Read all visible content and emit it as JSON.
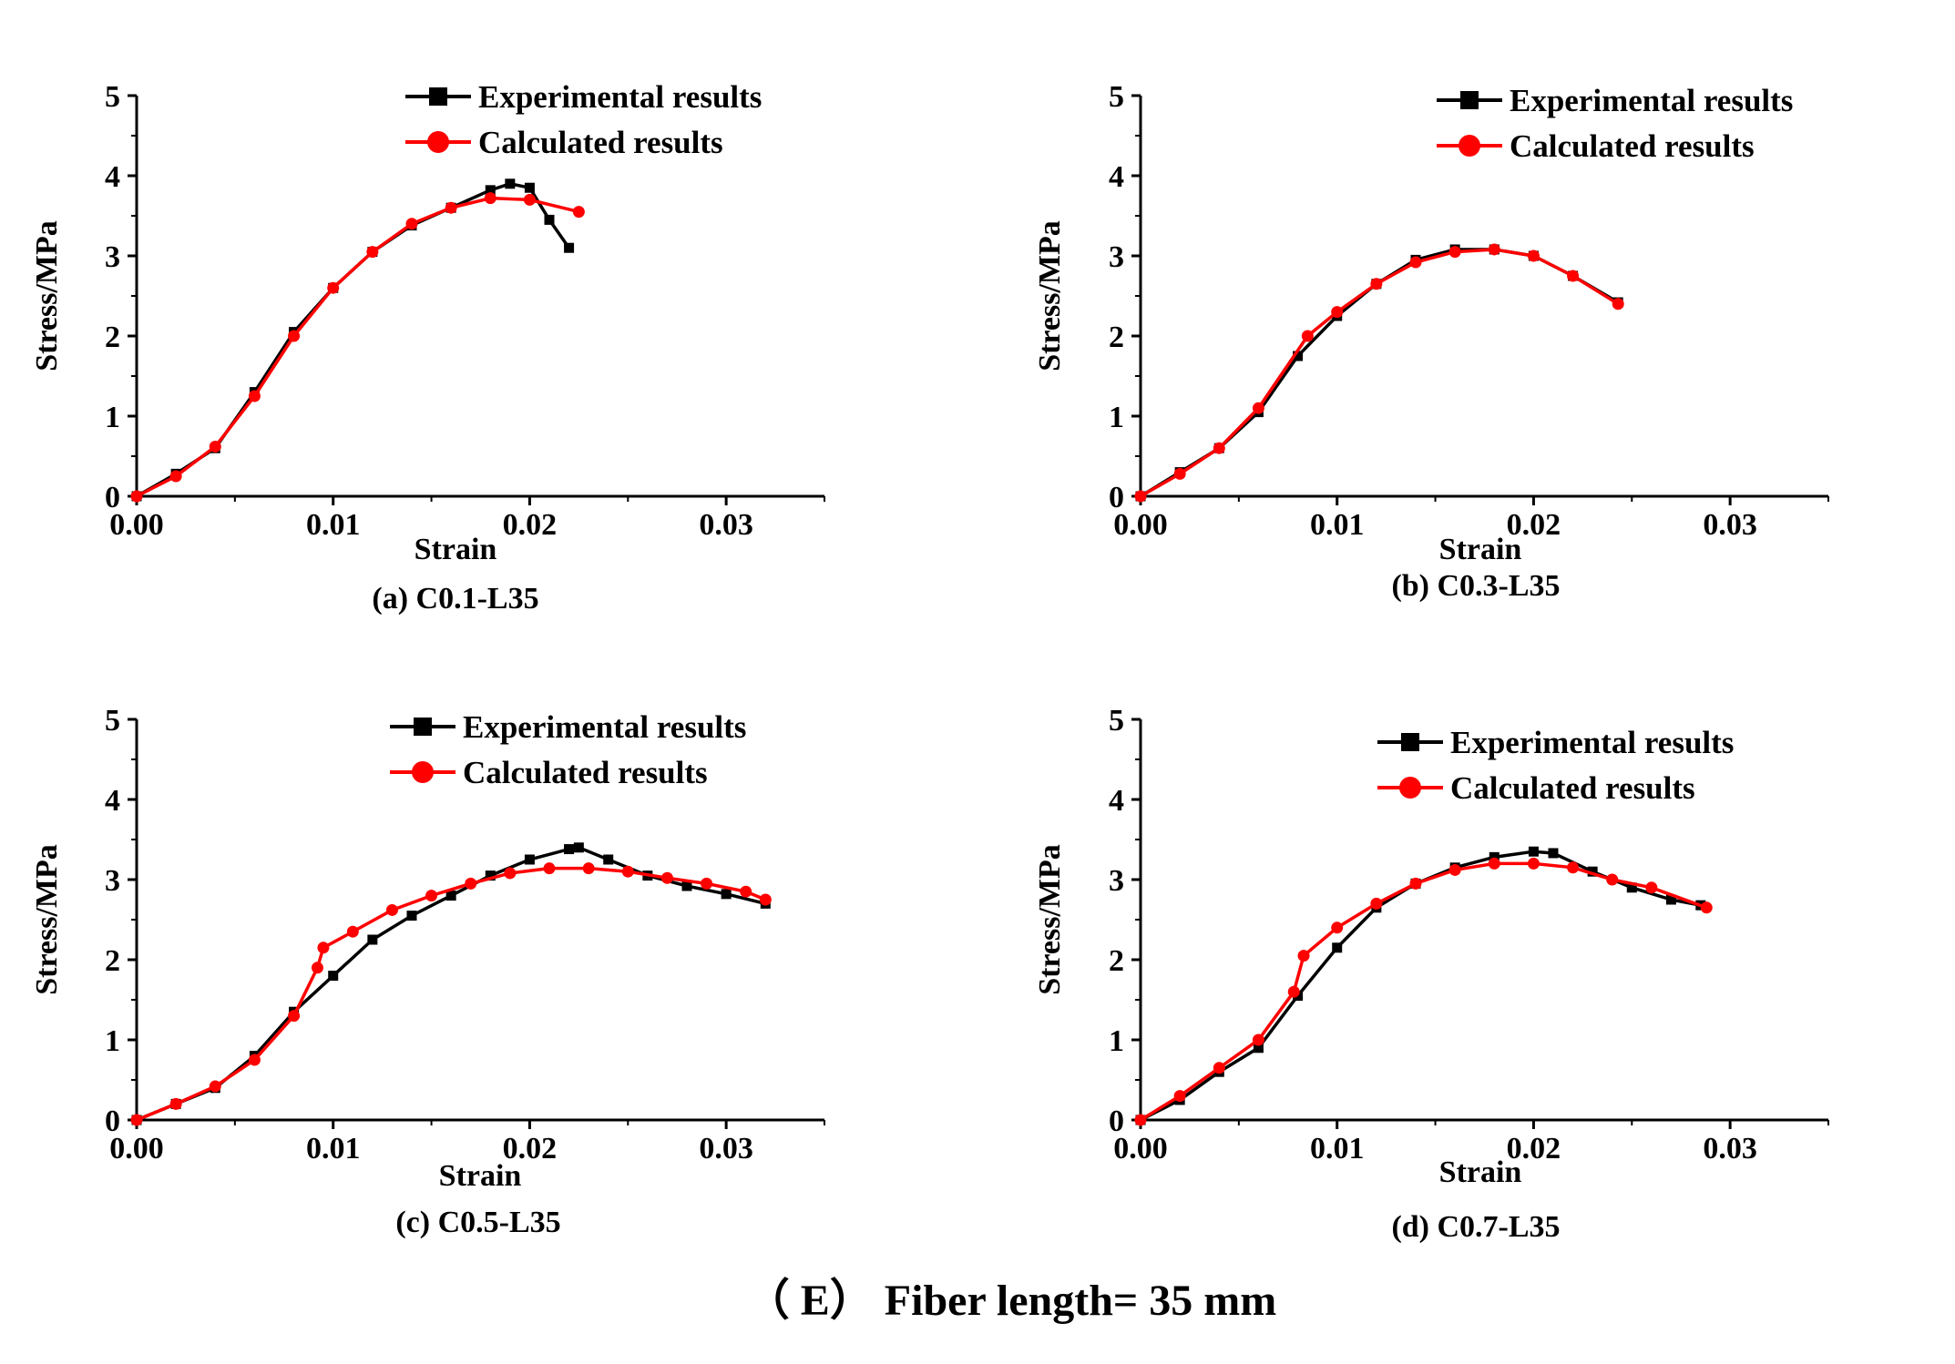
{
  "figure_caption": "（ E） Fiber length= 35 mm",
  "colors": {
    "experimental": "#000000",
    "calculated": "#ff0000",
    "axis": "#000000"
  },
  "legend": {
    "experimental": "Experimental results",
    "calculated": "Calculated results"
  },
  "chart_data": [
    {
      "type": "line",
      "caption": "(a) C0.1-L35",
      "xlabel": "Strain",
      "ylabel": "Stress/MPa",
      "xlim": [
        0,
        0.035
      ],
      "ylim": [
        0,
        5
      ],
      "xticks": [
        "0.00",
        "0.01",
        "0.02",
        "0.03"
      ],
      "yticks": [
        "0",
        "1",
        "2",
        "3",
        "4",
        "5"
      ],
      "legend_position": "top-right",
      "series": [
        {
          "name": "Experimental results",
          "marker": "square",
          "x": [
            0.0,
            0.002,
            0.004,
            0.006,
            0.008,
            0.01,
            0.012,
            0.014,
            0.016,
            0.018,
            0.019,
            0.02,
            0.021,
            0.022
          ],
          "y": [
            0.0,
            0.28,
            0.6,
            1.3,
            2.05,
            2.6,
            3.05,
            3.38,
            3.6,
            3.82,
            3.9,
            3.85,
            3.45,
            3.1
          ]
        },
        {
          "name": "Calculated results",
          "marker": "circle",
          "x": [
            0.0,
            0.002,
            0.004,
            0.006,
            0.008,
            0.01,
            0.012,
            0.014,
            0.016,
            0.018,
            0.02,
            0.0225
          ],
          "y": [
            0.0,
            0.25,
            0.62,
            1.25,
            2.0,
            2.6,
            3.05,
            3.4,
            3.6,
            3.72,
            3.7,
            3.55
          ]
        }
      ]
    },
    {
      "type": "line",
      "caption": "(b) C0.3-L35",
      "xlabel": "Strain",
      "ylabel": "Stress/MPa",
      "xlim": [
        0,
        0.035
      ],
      "ylim": [
        0,
        5
      ],
      "xticks": [
        "0.00",
        "0.01",
        "0.02",
        "0.03"
      ],
      "yticks": [
        "0",
        "1",
        "2",
        "3",
        "4",
        "5"
      ],
      "legend_position": "top-right",
      "series": [
        {
          "name": "Experimental results",
          "marker": "square",
          "x": [
            0.0,
            0.002,
            0.004,
            0.006,
            0.008,
            0.01,
            0.012,
            0.014,
            0.016,
            0.018,
            0.02,
            0.022,
            0.0243
          ],
          "y": [
            0.0,
            0.3,
            0.6,
            1.05,
            1.75,
            2.25,
            2.65,
            2.95,
            3.08,
            3.08,
            3.0,
            2.75,
            2.42
          ]
        },
        {
          "name": "Calculated results",
          "marker": "circle",
          "x": [
            0.0,
            0.002,
            0.004,
            0.006,
            0.0085,
            0.01,
            0.012,
            0.014,
            0.016,
            0.018,
            0.02,
            0.022,
            0.0243
          ],
          "y": [
            0.0,
            0.28,
            0.6,
            1.1,
            2.0,
            2.3,
            2.65,
            2.92,
            3.05,
            3.08,
            3.0,
            2.75,
            2.4
          ]
        }
      ]
    },
    {
      "type": "line",
      "caption": "(c) C0.5-L35",
      "xlabel": "Strain",
      "ylabel": "Stress/MPa",
      "xlim": [
        0,
        0.035
      ],
      "ylim": [
        0,
        5
      ],
      "xticks": [
        "0.00",
        "0.01",
        "0.02",
        "0.03"
      ],
      "yticks": [
        "0",
        "1",
        "2",
        "3",
        "4",
        "5"
      ],
      "legend_position": "top-right",
      "series": [
        {
          "name": "Experimental results",
          "marker": "square",
          "x": [
            0.0,
            0.002,
            0.004,
            0.006,
            0.008,
            0.01,
            0.012,
            0.014,
            0.016,
            0.018,
            0.02,
            0.022,
            0.0225,
            0.024,
            0.026,
            0.028,
            0.03,
            0.032
          ],
          "y": [
            0.0,
            0.2,
            0.4,
            0.8,
            1.35,
            1.8,
            2.25,
            2.55,
            2.8,
            3.05,
            3.25,
            3.38,
            3.4,
            3.25,
            3.05,
            2.92,
            2.82,
            2.7
          ]
        },
        {
          "name": "Calculated results",
          "marker": "circle",
          "x": [
            0.0,
            0.002,
            0.004,
            0.006,
            0.008,
            0.0092,
            0.0095,
            0.011,
            0.013,
            0.015,
            0.017,
            0.019,
            0.021,
            0.023,
            0.025,
            0.027,
            0.029,
            0.031,
            0.032
          ],
          "y": [
            0.0,
            0.2,
            0.42,
            0.75,
            1.3,
            1.9,
            2.15,
            2.35,
            2.62,
            2.8,
            2.95,
            3.08,
            3.14,
            3.14,
            3.1,
            3.02,
            2.95,
            2.85,
            2.75
          ]
        }
      ]
    },
    {
      "type": "line",
      "caption": "(d) C0.7-L35",
      "xlabel": "Strain",
      "ylabel": "Stress/MPa",
      "xlim": [
        0,
        0.035
      ],
      "ylim": [
        0,
        5
      ],
      "xticks": [
        "0.00",
        "0.01",
        "0.02",
        "0.03"
      ],
      "yticks": [
        "0",
        "1",
        "2",
        "3",
        "4",
        "5"
      ],
      "legend_position": "top-right",
      "series": [
        {
          "name": "Experimental results",
          "marker": "square",
          "x": [
            0.0,
            0.002,
            0.004,
            0.006,
            0.008,
            0.01,
            0.012,
            0.014,
            0.016,
            0.018,
            0.02,
            0.021,
            0.023,
            0.025,
            0.027,
            0.0285
          ],
          "y": [
            0.0,
            0.25,
            0.6,
            0.9,
            1.55,
            2.15,
            2.65,
            2.95,
            3.15,
            3.28,
            3.35,
            3.33,
            3.1,
            2.9,
            2.75,
            2.68
          ]
        },
        {
          "name": "Calculated results",
          "marker": "circle",
          "x": [
            0.0,
            0.002,
            0.004,
            0.006,
            0.0078,
            0.0083,
            0.01,
            0.012,
            0.014,
            0.016,
            0.018,
            0.02,
            0.022,
            0.024,
            0.026,
            0.0288
          ],
          "y": [
            0.0,
            0.3,
            0.65,
            1.0,
            1.6,
            2.05,
            2.4,
            2.7,
            2.95,
            3.12,
            3.2,
            3.2,
            3.15,
            3.0,
            2.9,
            2.65
          ]
        }
      ]
    }
  ]
}
